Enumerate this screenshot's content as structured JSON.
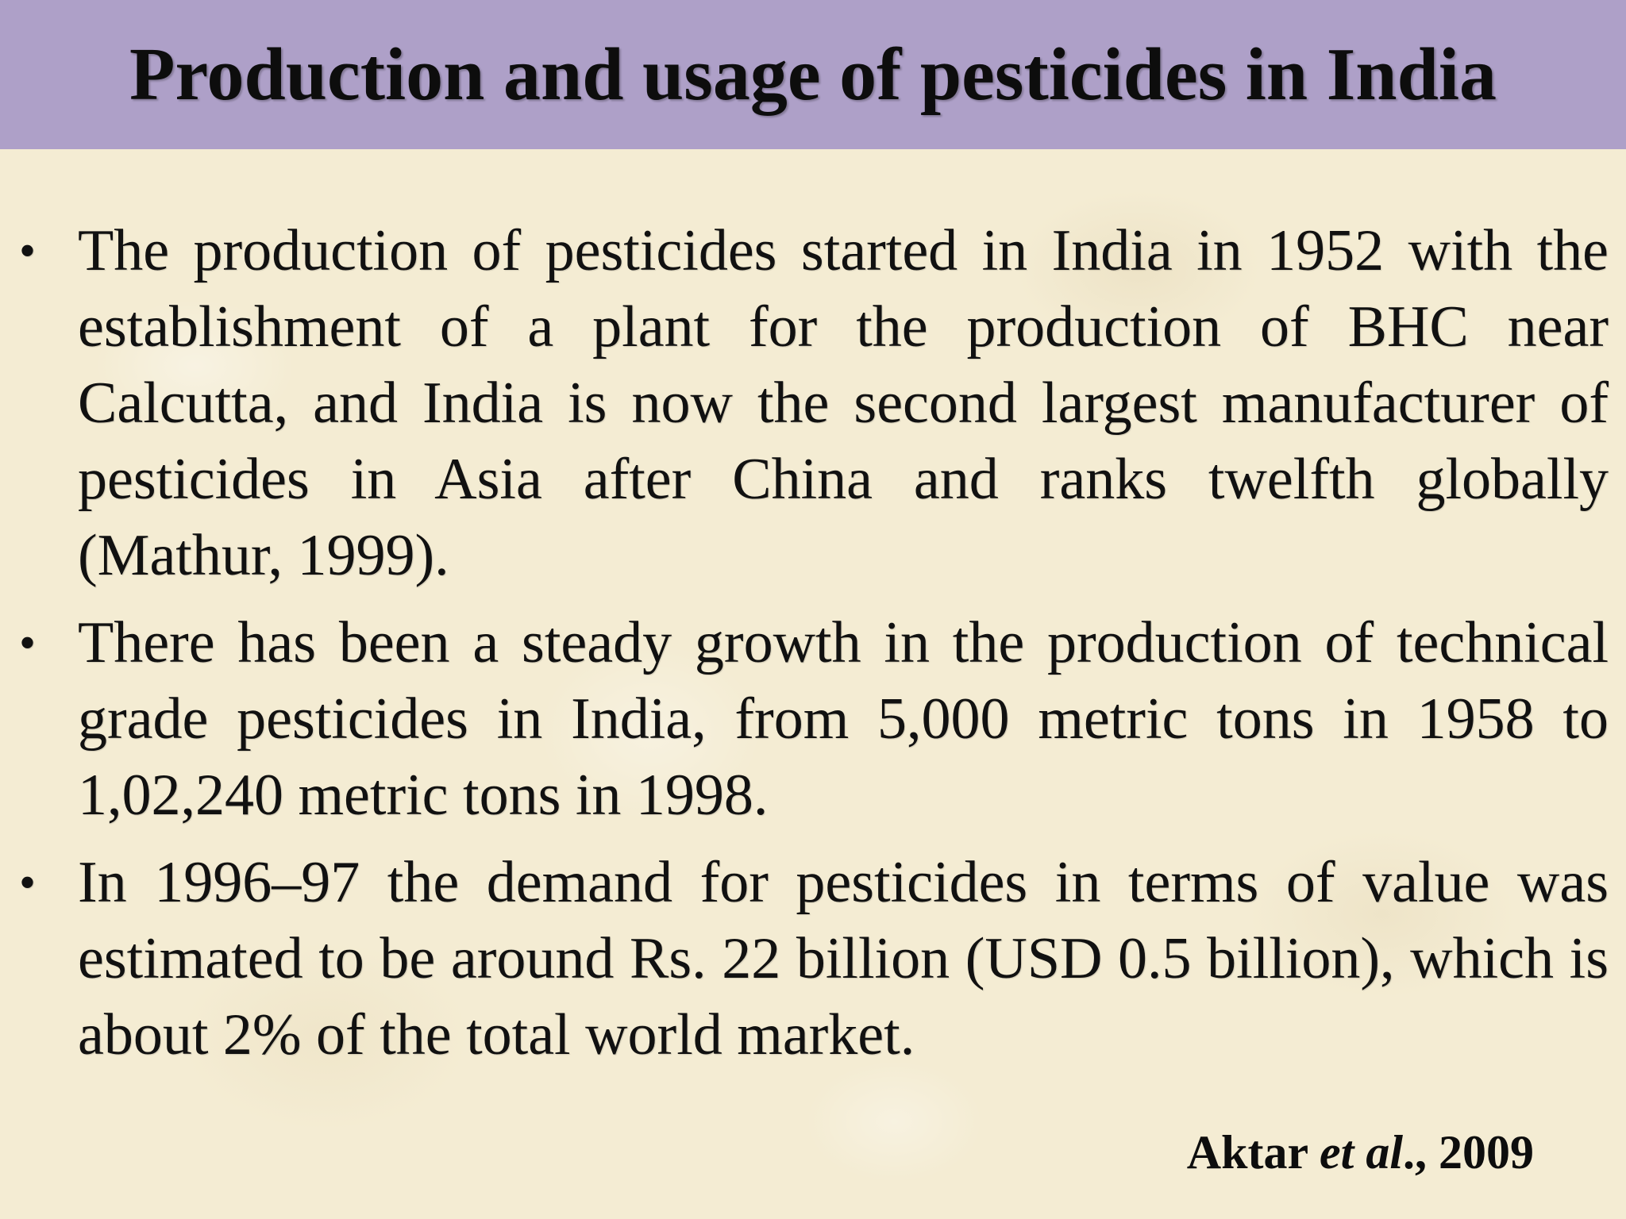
{
  "title": "Production and usage of pesticides in India",
  "bullet_symbol": "•",
  "bullets": [
    {
      "text": "The production of pesticides started in India in 1952 with the establishment of a plant for the production of BHC near Calcutta, and India is now the second largest manufacturer of pesticides in Asia after China and ranks twelfth globally (Mathur, 1999)."
    },
    {
      "text": " There has been a steady growth in the production of technical grade pesticides in India, from 5,000 metric tons in 1958 to 1,02,240 metric tons in 1998."
    },
    {
      "text": "In 1996–97 the demand for pesticides in terms of value was estimated to be around Rs. 22 billion (USD 0.5 billion), which is about 2% of the total world market."
    }
  ],
  "citation": {
    "author": "Aktar ",
    "etal": "et al",
    "suffix": "., 2009"
  },
  "colors": {
    "title_bar": "#aea0c8",
    "background": "#f4ecd3",
    "text": "#111111"
  }
}
